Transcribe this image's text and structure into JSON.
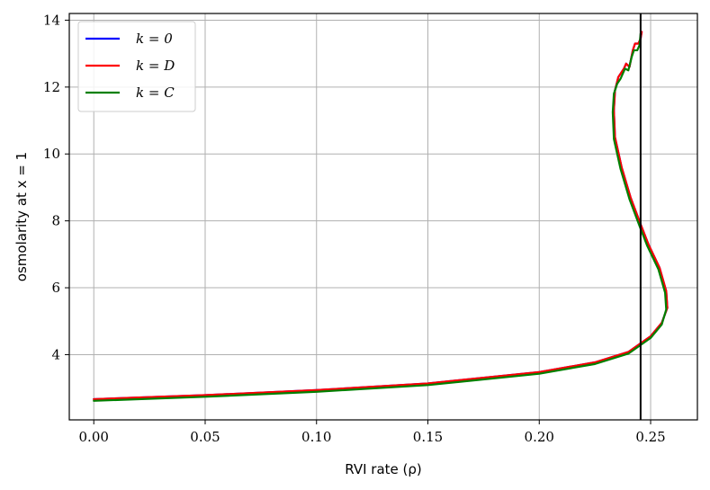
{
  "chart_data": {
    "type": "line",
    "title": "",
    "xlabel": "RVI rate (ρ)",
    "ylabel": "osmolarity at x = 1",
    "xlim": [
      -0.011,
      0.271
    ],
    "ylim": [
      2.05,
      14.2
    ],
    "x_ticks": [
      0.0,
      0.05,
      0.1,
      0.15,
      0.2,
      0.25
    ],
    "x_tick_labels": [
      "0.00",
      "0.05",
      "0.10",
      "0.15",
      "0.20",
      "0.25"
    ],
    "y_ticks": [
      4,
      6,
      8,
      10,
      12,
      14
    ],
    "y_tick_labels": [
      "4",
      "6",
      "8",
      "10",
      "12",
      "14"
    ],
    "grid": true,
    "legend_position": "top-left",
    "vertical_line": {
      "x": 0.2455,
      "color": "#000000"
    },
    "series": [
      {
        "name": "k = 0",
        "color": "#0000ff",
        "points": [
          [
            0.0,
            2.67
          ],
          [
            0.05,
            2.79
          ],
          [
            0.1,
            2.94
          ],
          [
            0.15,
            3.14
          ],
          [
            0.2,
            3.48
          ],
          [
            0.225,
            3.77
          ],
          [
            0.24,
            4.08
          ],
          [
            0.25,
            4.55
          ],
          [
            0.255,
            4.95
          ],
          [
            0.2575,
            5.4
          ],
          [
            0.257,
            5.9
          ],
          [
            0.254,
            6.6
          ],
          [
            0.249,
            7.3
          ],
          [
            0.2455,
            7.9
          ],
          [
            0.241,
            8.7
          ],
          [
            0.237,
            9.6
          ],
          [
            0.234,
            10.5
          ],
          [
            0.2335,
            11.3
          ],
          [
            0.234,
            11.9
          ],
          [
            0.2355,
            12.3
          ],
          [
            0.237,
            12.45
          ],
          [
            0.238,
            12.55
          ],
          [
            0.239,
            12.7
          ],
          [
            0.2405,
            12.6
          ],
          [
            0.242,
            13.1
          ],
          [
            0.243,
            13.3
          ],
          [
            0.2445,
            13.3
          ],
          [
            0.2455,
            13.45
          ],
          [
            0.246,
            13.65
          ]
        ]
      },
      {
        "name": "k = D",
        "color": "#ff0000",
        "points": [
          [
            0.0,
            2.67
          ],
          [
            0.05,
            2.79
          ],
          [
            0.1,
            2.94
          ],
          [
            0.15,
            3.14
          ],
          [
            0.2,
            3.48
          ],
          [
            0.225,
            3.77
          ],
          [
            0.24,
            4.08
          ],
          [
            0.25,
            4.55
          ],
          [
            0.255,
            4.95
          ],
          [
            0.2575,
            5.4
          ],
          [
            0.257,
            5.9
          ],
          [
            0.254,
            6.6
          ],
          [
            0.249,
            7.3
          ],
          [
            0.2455,
            7.9
          ],
          [
            0.241,
            8.7
          ],
          [
            0.237,
            9.6
          ],
          [
            0.234,
            10.5
          ],
          [
            0.2335,
            11.3
          ],
          [
            0.234,
            11.9
          ],
          [
            0.2355,
            12.3
          ],
          [
            0.237,
            12.45
          ],
          [
            0.238,
            12.55
          ],
          [
            0.239,
            12.7
          ],
          [
            0.2405,
            12.6
          ],
          [
            0.242,
            13.1
          ],
          [
            0.243,
            13.3
          ],
          [
            0.2445,
            13.3
          ],
          [
            0.2455,
            13.45
          ],
          [
            0.246,
            13.65
          ]
        ]
      },
      {
        "name": "k = C",
        "color": "#008000",
        "points": [
          [
            0.0,
            2.62
          ],
          [
            0.05,
            2.74
          ],
          [
            0.1,
            2.89
          ],
          [
            0.15,
            3.09
          ],
          [
            0.2,
            3.43
          ],
          [
            0.225,
            3.72
          ],
          [
            0.24,
            4.03
          ],
          [
            0.25,
            4.5
          ],
          [
            0.255,
            4.9
          ],
          [
            0.257,
            5.35
          ],
          [
            0.2565,
            5.85
          ],
          [
            0.2535,
            6.55
          ],
          [
            0.2485,
            7.25
          ],
          [
            0.245,
            7.85
          ],
          [
            0.2405,
            8.65
          ],
          [
            0.2365,
            9.55
          ],
          [
            0.2335,
            10.45
          ],
          [
            0.233,
            11.25
          ],
          [
            0.2335,
            11.8
          ],
          [
            0.235,
            12.1
          ],
          [
            0.2365,
            12.25
          ],
          [
            0.2375,
            12.4
          ],
          [
            0.2385,
            12.55
          ],
          [
            0.24,
            12.5
          ],
          [
            0.2415,
            12.9
          ],
          [
            0.2425,
            13.1
          ],
          [
            0.244,
            13.1
          ],
          [
            0.245,
            13.25
          ],
          [
            0.2455,
            13.6
          ]
        ]
      }
    ]
  }
}
